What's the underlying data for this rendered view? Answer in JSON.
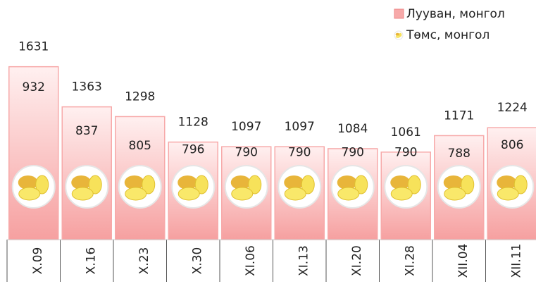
{
  "chart_data": {
    "type": "bar",
    "categories": [
      "X.09",
      "X.16",
      "X.23",
      "X.30",
      "XI.06",
      "XI.13",
      "XI.20",
      "XI.28",
      "XII.04",
      "XII.11"
    ],
    "series": [
      {
        "name": "Лууван, монгол",
        "color": "#f7a9a9",
        "values": [
          1631,
          1363,
          1298,
          1128,
          1097,
          1097,
          1084,
          1061,
          1171,
          1224
        ]
      },
      {
        "name": "Төмс, монгол",
        "color": "#f5d33a",
        "axis": "y2",
        "values": [
          932,
          837,
          805,
          796,
          790,
          790,
          790,
          790,
          788,
          806
        ]
      }
    ],
    "ylim": [
      477,
      1700
    ],
    "y2lim": [
      600,
      1000
    ]
  }
}
